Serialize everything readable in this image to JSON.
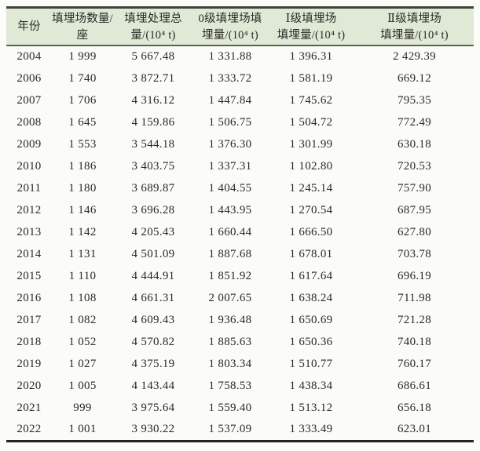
{
  "table": {
    "description": "landfill-statistics-table",
    "headers": [
      "年份",
      "填埋场数量/座",
      "填埋处理总\n量/(10⁴ t)",
      "0级填埋场填\n埋量/(10⁴ t)",
      "Ⅰ级填埋场\n填埋量/(10⁴ t)",
      "Ⅱ级填埋场\n填埋量/(10⁴ t)"
    ],
    "rows": [
      [
        "2004",
        "1 999",
        "5 667.48",
        "1 331.88",
        "1 396.31",
        "2 429.39"
      ],
      [
        "2006",
        "1 740",
        "3 872.71",
        "1 333.72",
        "1 581.19",
        "669.12"
      ],
      [
        "2007",
        "1 706",
        "4 316.12",
        "1 447.84",
        "1 745.62",
        "795.35"
      ],
      [
        "2008",
        "1 645",
        "4 159.86",
        "1 506.75",
        "1 504.72",
        "772.49"
      ],
      [
        "2009",
        "1 553",
        "3 544.18",
        "1 376.30",
        "1 301.99",
        "630.18"
      ],
      [
        "2010",
        "1 186",
        "3 403.75",
        "1 337.31",
        "1 102.80",
        "720.53"
      ],
      [
        "2011",
        "1 180",
        "3 689.87",
        "1 404.55",
        "1 245.14",
        "757.90"
      ],
      [
        "2012",
        "1 146",
        "3 696.28",
        "1 443.95",
        "1 270.54",
        "687.95"
      ],
      [
        "2013",
        "1 142",
        "4 205.43",
        "1 660.44",
        "1 666.50",
        "627.80"
      ],
      [
        "2014",
        "1 131",
        "4 501.09",
        "1 887.68",
        "1 678.01",
        "703.78"
      ],
      [
        "2015",
        "1 110",
        "4 444.91",
        "1 851.92",
        "1 617.64",
        "696.19"
      ],
      [
        "2016",
        "1 108",
        "4 661.31",
        "2 007.65",
        "1 638.24",
        "711.98"
      ],
      [
        "2017",
        "1 082",
        "4 609.43",
        "1 936.48",
        "1 650.69",
        "721.28"
      ],
      [
        "2018",
        "1 052",
        "4 570.82",
        "1 885.63",
        "1 650.36",
        "740.18"
      ],
      [
        "2019",
        "1 027",
        "4 375.19",
        "1 803.34",
        "1 510.77",
        "760.17"
      ],
      [
        "2020",
        "1 005",
        "4 143.44",
        "1 758.53",
        "1 438.34",
        "686.61"
      ],
      [
        "2021",
        "999",
        "3 975.64",
        "1 559.40",
        "1 513.12",
        "656.18"
      ],
      [
        "2022",
        "1 001",
        "3 930.22",
        "1 537.09",
        "1 333.49",
        "623.01"
      ]
    ],
    "colors": {
      "header_bg": "#dfe9d5",
      "top_rule": "#3d443a",
      "header_rule": "#59634f",
      "bottom_rule": "#23251f",
      "text": "#292926"
    }
  }
}
